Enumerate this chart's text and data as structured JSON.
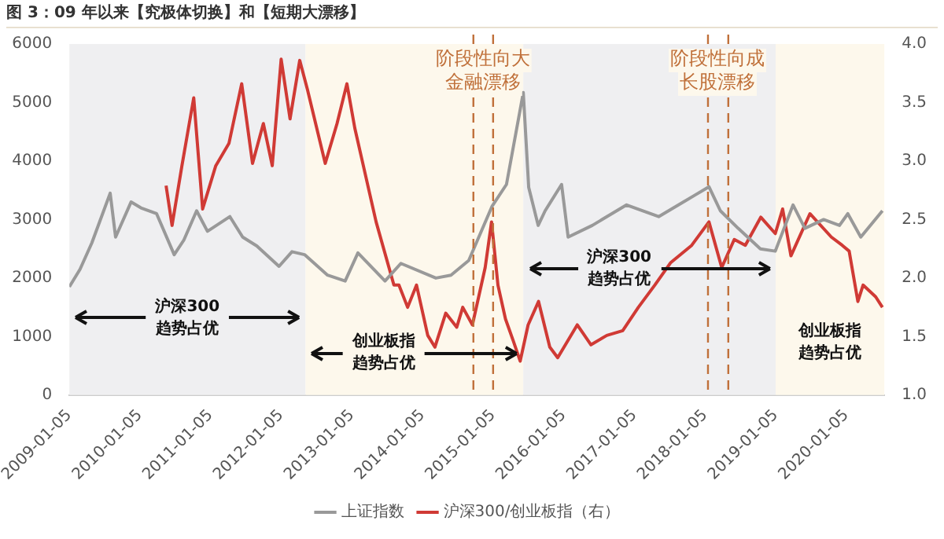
{
  "chart_data": {
    "type": "line",
    "title": "图 3：09 年以来【究极体切换】和【短期大漂移】",
    "xlim": [
      "2009-01-05",
      "2020-07-20"
    ],
    "xticks": [
      "2009-01-05",
      "2010-01-05",
      "2011-01-05",
      "2012-01-05",
      "2013-01-05",
      "2014-01-05",
      "2015-01-05",
      "2016-01-05",
      "2017-01-05",
      "2018-01-05",
      "2019-01-05",
      "2020-01-05"
    ],
    "ylim": [
      0,
      6000
    ],
    "yticks": [
      0,
      1000,
      2000,
      3000,
      4000,
      5000,
      6000
    ],
    "y2lim": [
      1,
      4
    ],
    "y2ticks": [
      {
        "value": 1,
        "label": "1.0"
      },
      {
        "value": 1.5,
        "label": "1.5"
      },
      {
        "value": 2,
        "label": "2.0"
      },
      {
        "value": 2.5,
        "label": "2.5"
      },
      {
        "value": 3,
        "label": "3.0"
      },
      {
        "value": 3.5,
        "label": "3.5"
      },
      {
        "value": 4,
        "label": "4.0"
      }
    ],
    "grid": false,
    "legend": "bottom",
    "marker": "none",
    "line_style": "solid",
    "series": [
      {
        "name": "上证指数",
        "color": "#999999",
        "x": [
          "2009-01-05",
          "2009-03-01",
          "2009-05-01",
          "2009-08-04",
          "2009-09-01",
          "2009-11-20",
          "2010-01-10",
          "2010-04-01",
          "2010-07-01",
          "2010-08-20",
          "2010-10-25",
          "2010-12-20",
          "2011-04-15",
          "2011-06-20",
          "2011-09-01",
          "2011-12-25",
          "2012-03-01",
          "2012-05-05",
          "2012-09-01",
          "2012-12-01",
          "2013-02-05",
          "2013-06-25",
          "2013-09-15",
          "2014-03-15",
          "2014-06-01",
          "2014-09-01",
          "2014-12-31",
          "2015-03-15",
          "2015-06-10",
          "2015-07-08",
          "2015-08-26",
          "2015-10-01",
          "2015-12-25",
          "2016-01-28",
          "2016-06-01",
          "2016-11-25",
          "2017-05-10",
          "2017-11-15",
          "2018-01-25",
          "2018-03-25",
          "2018-06-25",
          "2018-10-18",
          "2019-01-03",
          "2019-04-05",
          "2019-06-05",
          "2019-09-10",
          "2019-12-01",
          "2020-01-13",
          "2020-03-20",
          "2020-07-10"
        ],
        "values": [
          1850,
          2150,
          2600,
          3450,
          2700,
          3300,
          3200,
          3100,
          2400,
          2650,
          3150,
          2800,
          3050,
          2700,
          2550,
          2200,
          2450,
          2400,
          2050,
          1950,
          2430,
          1950,
          2250,
          2000,
          2050,
          2300,
          3230,
          3600,
          5170,
          3550,
          2900,
          3150,
          3600,
          2700,
          2900,
          3250,
          3050,
          3420,
          3560,
          3150,
          2850,
          2500,
          2460,
          3250,
          2850,
          3000,
          2900,
          3100,
          2700,
          3150
        ]
      },
      {
        "name": "沪深300/创业板指（右）",
        "color": "#d03a35",
        "axis": "y2",
        "x": [
          "2010-05-20",
          "2010-06-20",
          "2010-08-10",
          "2010-10-10",
          "2010-11-25",
          "2011-02-01",
          "2011-04-10",
          "2011-06-15",
          "2011-08-10",
          "2011-10-05",
          "2011-11-20",
          "2012-01-05",
          "2012-02-20",
          "2012-04-10",
          "2012-05-20",
          "2012-08-20",
          "2012-10-20",
          "2012-12-10",
          "2013-01-20",
          "2013-03-05",
          "2013-05-10",
          "2013-08-10",
          "2013-09-05",
          "2013-10-20",
          "2013-12-05",
          "2014-02-01",
          "2014-03-10",
          "2014-05-05",
          "2014-07-01",
          "2014-08-01",
          "2014-09-20",
          "2014-11-25",
          "2014-12-28",
          "2015-01-30",
          "2015-03-10",
          "2015-04-20",
          "2015-05-25",
          "2015-07-05",
          "2015-08-28",
          "2015-10-25",
          "2015-12-05",
          "2016-03-15",
          "2016-05-25",
          "2016-08-15",
          "2016-11-05",
          "2017-01-25",
          "2017-04-20",
          "2017-07-10",
          "2017-10-28",
          "2018-01-25",
          "2018-04-01",
          "2018-06-05",
          "2018-08-01",
          "2018-10-20",
          "2019-01-03",
          "2019-02-10",
          "2019-03-25",
          "2019-07-01",
          "2019-10-20",
          "2019-12-15",
          "2020-01-20",
          "2020-03-05",
          "2020-04-01",
          "2020-06-05",
          "2020-07-10"
        ],
        "values": [
          2.79,
          2.45,
          2.96,
          3.54,
          2.59,
          2.96,
          3.15,
          3.66,
          2.98,
          3.32,
          2.96,
          3.87,
          3.36,
          3.86,
          3.61,
          2.98,
          3.32,
          3.66,
          3.28,
          2.96,
          2.48,
          1.94,
          1.94,
          1.75,
          1.94,
          1.51,
          1.41,
          1.7,
          1.58,
          1.75,
          1.6,
          2.09,
          2.48,
          1.94,
          1.65,
          1.46,
          1.29,
          1.6,
          1.8,
          1.41,
          1.32,
          1.6,
          1.43,
          1.51,
          1.55,
          1.75,
          1.94,
          2.13,
          2.28,
          2.48,
          2.09,
          2.33,
          2.28,
          2.52,
          2.38,
          2.59,
          2.19,
          2.55,
          2.35,
          2.28,
          2.23,
          1.8,
          1.94,
          1.84,
          1.75
        ]
      }
    ],
    "bands": [
      {
        "axis": "x",
        "from": "2009-01-05",
        "to": "2012-05-10",
        "label": "沪深300趋势占优",
        "color": "#efeff1"
      },
      {
        "axis": "x",
        "from": "2012-05-10",
        "to": "2015-06-10",
        "label": "创业板指趋势占优",
        "color": "#fdf8ec"
      },
      {
        "axis": "x",
        "from": "2015-06-10",
        "to": "2019-01-05",
        "label": "沪深300趋势占优",
        "color": "#efeff1"
      },
      {
        "axis": "x",
        "from": "2019-01-05",
        "to": "2020-07-20",
        "label": "创业板指趋势占优",
        "color": "#fdf8ec"
      }
    ],
    "ref_lines": [
      {
        "axis": "x",
        "value": "2014-09-25",
        "label": "阶段性向大金融漂移",
        "color": "#c0703a",
        "line_style": "dashed"
      },
      {
        "axis": "x",
        "value": "2015-01-05",
        "color": "#c0703a",
        "line_style": "dashed"
      },
      {
        "axis": "x",
        "value": "2018-01-20",
        "label": "阶段性向成长股漂移",
        "color": "#c0703a",
        "line_style": "dashed"
      },
      {
        "axis": "x",
        "value": "2018-05-05",
        "color": "#c0703a",
        "line_style": "dashed"
      }
    ]
  }
}
